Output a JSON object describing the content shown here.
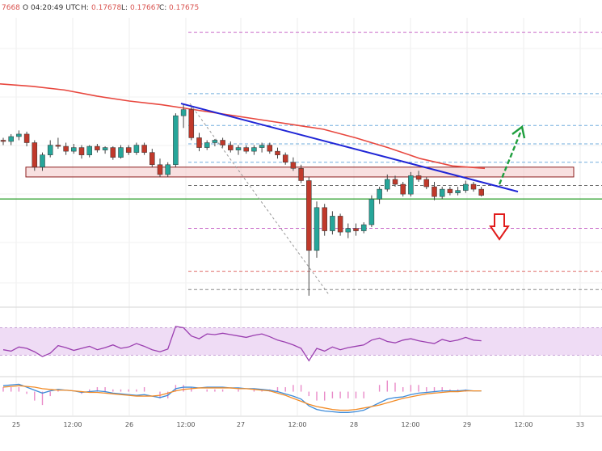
{
  "header": {
    "text": "O 04:20:49 UTC",
    "o": "7668",
    "h_label": "H:",
    "h": "0.17678",
    "l_label": "L:",
    "l": "0.17667",
    "c_label": "C:",
    "c": "0.17675"
  },
  "colors": {
    "bull": "#26a69a",
    "bear": "#c0392b",
    "ma": "#e8473e",
    "trend": "#1f25d6",
    "support": "#3aa43a",
    "rsi": "#9b3fb0",
    "macd": "#3d8bd9",
    "signal": "#f28c28",
    "hist": "#e98ac8",
    "up_arrow": "#1e9e3e",
    "down_arrow": "#e11b1b",
    "zone": "#f4cccc"
  },
  "chart_data": {
    "type": "candlestick",
    "title": "",
    "x_ticks": [
      "25",
      "12:00",
      "26",
      "12:00",
      "27",
      "12:00",
      "28",
      "12:00",
      "29",
      "12:00",
      "33"
    ],
    "price_pane": {
      "y_range": [
        0.1655,
        0.189
      ],
      "support_line": 0.1742,
      "resistance_zone": [
        0.176,
        0.1768
      ],
      "fib_levels": [
        0.1878,
        0.1828,
        0.1802,
        0.1787,
        0.1772,
        0.1753,
        0.1718,
        0.1683,
        0.1668
      ],
      "moving_average": [
        0.1836,
        0.1834,
        0.1831,
        0.1826,
        0.1822,
        0.1819,
        0.1815,
        0.1811,
        0.1807,
        0.1803,
        0.1799,
        0.1792,
        0.1784,
        0.1775,
        0.1769,
        0.1767
      ],
      "trendline": {
        "from": [
          0,
          0.182
        ],
        "to": [
          1,
          0.1748
        ]
      },
      "candles": [
        [
          0.179,
          0.1792,
          0.1786,
          0.1789
        ],
        [
          0.1789,
          0.1795,
          0.1786,
          0.1793
        ],
        [
          0.1793,
          0.1798,
          0.179,
          0.1795
        ],
        [
          0.1795,
          0.1797,
          0.1785,
          0.1788
        ],
        [
          0.1788,
          0.179,
          0.1765,
          0.1768
        ],
        [
          0.1768,
          0.178,
          0.1765,
          0.1778
        ],
        [
          0.1778,
          0.179,
          0.1776,
          0.1786
        ],
        [
          0.1786,
          0.1792,
          0.1783,
          0.1785
        ],
        [
          0.1785,
          0.1788,
          0.1778,
          0.1781
        ],
        [
          0.1781,
          0.1787,
          0.1779,
          0.1784
        ],
        [
          0.1784,
          0.1786,
          0.1775,
          0.1778
        ],
        [
          0.1778,
          0.1786,
          0.1776,
          0.1785
        ],
        [
          0.1785,
          0.1787,
          0.178,
          0.1782
        ],
        [
          0.1782,
          0.1785,
          0.1779,
          0.1784
        ],
        [
          0.1784,
          0.1785,
          0.1774,
          0.1776
        ],
        [
          0.1776,
          0.1786,
          0.1775,
          0.1784
        ],
        [
          0.1784,
          0.1786,
          0.1778,
          0.178
        ],
        [
          0.178,
          0.1788,
          0.1778,
          0.1786
        ],
        [
          0.1786,
          0.1788,
          0.1778,
          0.178
        ],
        [
          0.178,
          0.1783,
          0.1768,
          0.177
        ],
        [
          0.177,
          0.1775,
          0.176,
          0.1762
        ],
        [
          0.1762,
          0.1772,
          0.176,
          0.177
        ],
        [
          0.177,
          0.1812,
          0.1768,
          0.181
        ],
        [
          0.181,
          0.182,
          0.18,
          0.1815
        ],
        [
          0.1815,
          0.1817,
          0.179,
          0.1792
        ],
        [
          0.1792,
          0.1796,
          0.1781,
          0.1784
        ],
        [
          0.1784,
          0.179,
          0.1782,
          0.1788
        ],
        [
          0.1788,
          0.1791,
          0.1785,
          0.179
        ],
        [
          0.179,
          0.1792,
          0.1784,
          0.1786
        ],
        [
          0.1786,
          0.1789,
          0.178,
          0.1782
        ],
        [
          0.1782,
          0.1786,
          0.1778,
          0.1784
        ],
        [
          0.1784,
          0.1786,
          0.1779,
          0.1781
        ],
        [
          0.1781,
          0.1786,
          0.1778,
          0.1784
        ],
        [
          0.1784,
          0.1788,
          0.178,
          0.1786
        ],
        [
          0.1786,
          0.1788,
          0.1779,
          0.1781
        ],
        [
          0.1781,
          0.1784,
          0.1775,
          0.1778
        ],
        [
          0.1778,
          0.178,
          0.177,
          0.1772
        ],
        [
          0.1772,
          0.1776,
          0.1765,
          0.1767
        ],
        [
          0.1767,
          0.177,
          0.1755,
          0.1757
        ],
        [
          0.1757,
          0.176,
          0.1663,
          0.17
        ],
        [
          0.17,
          0.174,
          0.1694,
          0.1735
        ],
        [
          0.1735,
          0.1738,
          0.1712,
          0.1716
        ],
        [
          0.1716,
          0.1732,
          0.1713,
          0.1728
        ],
        [
          0.1728,
          0.173,
          0.1712,
          0.1715
        ],
        [
          0.1715,
          0.1722,
          0.171,
          0.1718
        ],
        [
          0.1718,
          0.1722,
          0.1712,
          0.1716
        ],
        [
          0.1716,
          0.1723,
          0.1714,
          0.1721
        ],
        [
          0.1721,
          0.1745,
          0.1719,
          0.1742
        ],
        [
          0.1742,
          0.1752,
          0.1738,
          0.175
        ],
        [
          0.175,
          0.1762,
          0.1748,
          0.1758
        ],
        [
          0.1758,
          0.1761,
          0.1752,
          0.1754
        ],
        [
          0.1754,
          0.1756,
          0.1744,
          0.1746
        ],
        [
          0.1746,
          0.1764,
          0.1744,
          0.1761
        ],
        [
          0.1761,
          0.1765,
          0.1756,
          0.1758
        ],
        [
          0.1758,
          0.176,
          0.175,
          0.1752
        ],
        [
          0.1752,
          0.1756,
          0.1741,
          0.1744
        ],
        [
          0.1744,
          0.1752,
          0.1742,
          0.175
        ],
        [
          0.175,
          0.1752,
          0.1745,
          0.1747
        ],
        [
          0.1747,
          0.1752,
          0.1745,
          0.1749
        ],
        [
          0.1749,
          0.1757,
          0.1747,
          0.1754
        ],
        [
          0.1754,
          0.1756,
          0.1748,
          0.175
        ],
        [
          0.175,
          0.1752,
          0.1744,
          0.1745
        ]
      ]
    },
    "rsi_pane": {
      "y_range": [
        0,
        100
      ],
      "band": [
        30,
        70
      ],
      "values": [
        38,
        36,
        42,
        40,
        35,
        28,
        33,
        44,
        41,
        37,
        40,
        43,
        38,
        41,
        45,
        40,
        42,
        47,
        43,
        38,
        35,
        39,
        72,
        70,
        58,
        54,
        61,
        60,
        62,
        60,
        58,
        56,
        59,
        61,
        57,
        52,
        49,
        45,
        40,
        22,
        40,
        36,
        42,
        38,
        41,
        43,
        45,
        52,
        55,
        50,
        48,
        52,
        54,
        51,
        49,
        47,
        53,
        50,
        52,
        56,
        52,
        51
      ]
    },
    "macd_pane": {
      "macd": [
        0.8,
        0.9,
        1.0,
        0.6,
        0.2,
        -0.2,
        0.1,
        0.3,
        0.2,
        0.1,
        -0.1,
        0.0,
        0.1,
        0.0,
        -0.2,
        -0.3,
        -0.4,
        -0.5,
        -0.4,
        -0.6,
        -0.8,
        -0.5,
        0.4,
        0.6,
        0.6,
        0.5,
        0.6,
        0.6,
        0.6,
        0.5,
        0.5,
        0.4,
        0.4,
        0.3,
        0.2,
        0.0,
        -0.3,
        -0.6,
        -1.0,
        -1.9,
        -2.4,
        -2.6,
        -2.7,
        -2.8,
        -2.8,
        -2.7,
        -2.5,
        -2.0,
        -1.5,
        -1.0,
        -0.8,
        -0.7,
        -0.4,
        -0.2,
        -0.1,
        0.0,
        0.1,
        0.1,
        0.1,
        0.2,
        0.1,
        0.1
      ],
      "signal": [
        0.6,
        0.7,
        0.8,
        0.7,
        0.6,
        0.4,
        0.3,
        0.2,
        0.2,
        0.1,
        0.0,
        -0.1,
        -0.1,
        -0.2,
        -0.3,
        -0.4,
        -0.5,
        -0.6,
        -0.6,
        -0.6,
        -0.5,
        -0.2,
        0.1,
        0.3,
        0.4,
        0.5,
        0.5,
        0.5,
        0.5,
        0.5,
        0.4,
        0.4,
        0.3,
        0.2,
        0.1,
        -0.2,
        -0.5,
        -0.9,
        -1.3,
        -1.7,
        -2.0,
        -2.2,
        -2.4,
        -2.5,
        -2.5,
        -2.4,
        -2.2,
        -2.0,
        -1.8,
        -1.5,
        -1.2,
        -0.9,
        -0.7,
        -0.5,
        -0.3,
        -0.2,
        -0.1,
        0.0,
        0.0,
        0.1,
        0.1,
        0.1
      ],
      "y_range": [
        -3.2,
        1.8
      ]
    }
  }
}
